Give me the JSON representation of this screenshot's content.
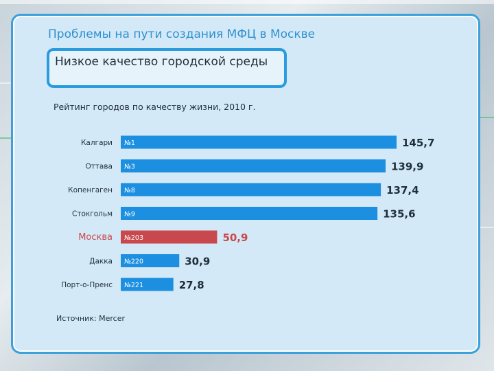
{
  "header": {
    "title": "Проблемы на пути создания МФЦ в Москве",
    "subtitle": "Низкое качество городской среды"
  },
  "chart_data": {
    "type": "bar",
    "orientation": "horizontal",
    "title": "Рейтинг городов по качеству жизни, 2010 г.",
    "categories": [
      "Калгари",
      "Оттава",
      "Копенгаген",
      "Стокгольм",
      "Москва",
      "Дакка",
      "Порт-о-Пренс"
    ],
    "ranks": [
      "№1",
      "№3",
      "№8",
      "№9",
      "№203",
      "№220",
      "№221"
    ],
    "values": [
      145.7,
      139.9,
      137.4,
      135.6,
      50.9,
      30.9,
      27.8
    ],
    "value_labels": [
      "145,7",
      "139,9",
      "137,4",
      "135,6",
      "50,9",
      "30,9",
      "27,8"
    ],
    "highlight": "Москва",
    "colors": {
      "bar": "#1d8fe0",
      "highlight_bar": "#c9484e",
      "highlight_text": "#c9484e",
      "text": "#1f2f3a"
    },
    "xlim": [
      0,
      145.7
    ]
  },
  "footer": {
    "source": "Источник: Mercer"
  }
}
